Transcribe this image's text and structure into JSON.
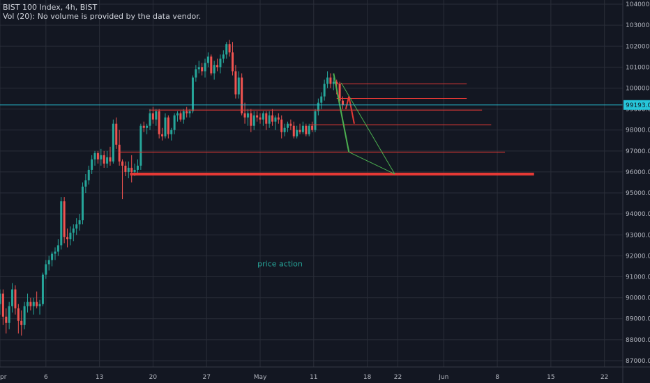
{
  "header": {
    "symbol_line": "BIST 100 Index, 4h, BIST",
    "volume_line": "Vol (20): No volume is provided by the data vendor."
  },
  "colors": {
    "background": "#131722",
    "grid": "#2a2e39",
    "up": "#26a69a",
    "down": "#ef5350",
    "level_line": "#e53935",
    "cyan_line": "#26c6da"
  },
  "chart_data": {
    "type": "candlestick",
    "title": "BIST 100 Index, 4h, BIST",
    "ylim": [
      86700,
      104200
    ],
    "y_ticks": [
      104000,
      103000,
      102000,
      101000,
      100000,
      99000,
      98000,
      97000,
      96000,
      95000,
      94000,
      93000,
      92000,
      91000,
      90000,
      89000,
      88000,
      87000
    ],
    "y_tick_labels": [
      "104000.00",
      "103000.00",
      "102000.00",
      "101000.00",
      "100000.00",
      "99000.00",
      "98000.00",
      "97000.00",
      "96000.00",
      "95000.00",
      "94000.00",
      "93000.00",
      "92000.00",
      "91000.00",
      "90000.00",
      "89000.00",
      "88000.00",
      "87000.00"
    ],
    "x_ticks": [
      {
        "label": "pr",
        "day": 0
      },
      {
        "label": "6",
        "day": 6
      },
      {
        "label": "13",
        "day": 13
      },
      {
        "label": "20",
        "day": 20
      },
      {
        "label": "27",
        "day": 27
      },
      {
        "label": "May",
        "day": 34
      },
      {
        "label": "11",
        "day": 41
      },
      {
        "label": "18",
        "day": 48
      },
      {
        "label": "22",
        "day": 52
      },
      {
        "label": "Jun",
        "day": 58
      },
      {
        "label": "8",
        "day": 65
      },
      {
        "label": "15",
        "day": 72
      },
      {
        "label": "22",
        "day": 79
      }
    ],
    "x_range_days": [
      0,
      81.4
    ],
    "current_price": 99193.03,
    "current_price_label": "99193.03",
    "candles": [
      {
        "d": 0.0,
        "o": 89700,
        "h": 90400,
        "l": 89200,
        "c": 90200
      },
      {
        "d": 0.4,
        "o": 90200,
        "h": 90400,
        "l": 88700,
        "c": 89100
      },
      {
        "d": 0.8,
        "o": 89100,
        "h": 89500,
        "l": 88300,
        "c": 88800
      },
      {
        "d": 1.2,
        "o": 88800,
        "h": 89800,
        "l": 88500,
        "c": 89600
      },
      {
        "d": 1.6,
        "o": 89600,
        "h": 90700,
        "l": 89300,
        "c": 90400
      },
      {
        "d": 2.0,
        "o": 90400,
        "h": 90600,
        "l": 89200,
        "c": 89500
      },
      {
        "d": 2.4,
        "o": 89500,
        "h": 89700,
        "l": 88300,
        "c": 88900
      },
      {
        "d": 2.8,
        "o": 88900,
        "h": 89400,
        "l": 88200,
        "c": 88700
      },
      {
        "d": 3.2,
        "o": 88700,
        "h": 89800,
        "l": 88500,
        "c": 89600
      },
      {
        "d": 3.6,
        "o": 89600,
        "h": 90200,
        "l": 89300,
        "c": 89800
      },
      {
        "d": 4.0,
        "o": 89800,
        "h": 90000,
        "l": 89400,
        "c": 89600
      },
      {
        "d": 4.4,
        "o": 89600,
        "h": 90000,
        "l": 89200,
        "c": 89800
      },
      {
        "d": 4.8,
        "o": 89800,
        "h": 90300,
        "l": 89500,
        "c": 89600
      },
      {
        "d": 5.2,
        "o": 89600,
        "h": 89900,
        "l": 89200,
        "c": 89700
      },
      {
        "d": 5.6,
        "o": 89700,
        "h": 91200,
        "l": 89600,
        "c": 91100
      },
      {
        "d": 6.0,
        "o": 91100,
        "h": 91800,
        "l": 90900,
        "c": 91600
      },
      {
        "d": 6.4,
        "o": 91600,
        "h": 92000,
        "l": 91300,
        "c": 91800
      },
      {
        "d": 6.8,
        "o": 91800,
        "h": 92200,
        "l": 91500,
        "c": 92100
      },
      {
        "d": 7.2,
        "o": 92100,
        "h": 92400,
        "l": 91800,
        "c": 92200
      },
      {
        "d": 7.6,
        "o": 92200,
        "h": 92800,
        "l": 92000,
        "c": 92500
      },
      {
        "d": 8.0,
        "o": 92500,
        "h": 94800,
        "l": 92300,
        "c": 94600
      },
      {
        "d": 8.4,
        "o": 94600,
        "h": 94800,
        "l": 92600,
        "c": 92900
      },
      {
        "d": 8.8,
        "o": 92900,
        "h": 93300,
        "l": 92400,
        "c": 92800
      },
      {
        "d": 9.2,
        "o": 92800,
        "h": 93400,
        "l": 92500,
        "c": 93100
      },
      {
        "d": 9.6,
        "o": 93100,
        "h": 93500,
        "l": 92700,
        "c": 93300
      },
      {
        "d": 10.0,
        "o": 93300,
        "h": 93800,
        "l": 93000,
        "c": 93500
      },
      {
        "d": 10.4,
        "o": 93500,
        "h": 94000,
        "l": 93200,
        "c": 93700
      },
      {
        "d": 10.8,
        "o": 93700,
        "h": 95500,
        "l": 93500,
        "c": 95300
      },
      {
        "d": 11.2,
        "o": 95300,
        "h": 95900,
        "l": 95000,
        "c": 95600
      },
      {
        "d": 11.6,
        "o": 95600,
        "h": 96300,
        "l": 95400,
        "c": 96100
      },
      {
        "d": 12.0,
        "o": 96100,
        "h": 96800,
        "l": 95900,
        "c": 96600
      },
      {
        "d": 12.4,
        "o": 96600,
        "h": 97000,
        "l": 96300,
        "c": 96900
      },
      {
        "d": 12.8,
        "o": 96900,
        "h": 97000,
        "l": 96400,
        "c": 96600
      },
      {
        "d": 13.2,
        "o": 96600,
        "h": 97100,
        "l": 96300,
        "c": 96800
      },
      {
        "d": 13.6,
        "o": 96800,
        "h": 97000,
        "l": 96200,
        "c": 96400
      },
      {
        "d": 14.0,
        "o": 96400,
        "h": 97000,
        "l": 96200,
        "c": 96700
      },
      {
        "d": 14.4,
        "o": 96700,
        "h": 97200,
        "l": 96300,
        "c": 96500
      },
      {
        "d": 14.8,
        "o": 96500,
        "h": 98500,
        "l": 96400,
        "c": 98300
      },
      {
        "d": 15.2,
        "o": 98300,
        "h": 98600,
        "l": 97100,
        "c": 97300
      },
      {
        "d": 15.6,
        "o": 97300,
        "h": 98000,
        "l": 96300,
        "c": 96500
      },
      {
        "d": 16.0,
        "o": 96500,
        "h": 96600,
        "l": 94700,
        "c": 96300
      },
      {
        "d": 16.4,
        "o": 96300,
        "h": 96500,
        "l": 95800,
        "c": 96000
      },
      {
        "d": 16.8,
        "o": 96000,
        "h": 96500,
        "l": 95700,
        "c": 96200
      },
      {
        "d": 17.2,
        "o": 96200,
        "h": 96800,
        "l": 95500,
        "c": 96000
      },
      {
        "d": 17.6,
        "o": 96000,
        "h": 96400,
        "l": 95800,
        "c": 96100
      },
      {
        "d": 18.0,
        "o": 96100,
        "h": 96600,
        "l": 95900,
        "c": 96300
      },
      {
        "d": 18.4,
        "o": 96300,
        "h": 98300,
        "l": 96100,
        "c": 98200
      },
      {
        "d": 18.8,
        "o": 98200,
        "h": 98400,
        "l": 97900,
        "c": 98100
      },
      {
        "d": 19.2,
        "o": 98100,
        "h": 98300,
        "l": 97800,
        "c": 98200
      },
      {
        "d": 19.6,
        "o": 98200,
        "h": 99000,
        "l": 98000,
        "c": 98800
      },
      {
        "d": 20.0,
        "o": 98800,
        "h": 99100,
        "l": 98300,
        "c": 98500
      },
      {
        "d": 20.4,
        "o": 98500,
        "h": 99000,
        "l": 98200,
        "c": 98900
      },
      {
        "d": 20.8,
        "o": 98900,
        "h": 99000,
        "l": 97600,
        "c": 97800
      },
      {
        "d": 21.2,
        "o": 97800,
        "h": 98100,
        "l": 97500,
        "c": 97700
      },
      {
        "d": 21.6,
        "o": 97700,
        "h": 98800,
        "l": 97600,
        "c": 98600
      },
      {
        "d": 22.0,
        "o": 98600,
        "h": 98700,
        "l": 97600,
        "c": 97800
      },
      {
        "d": 22.4,
        "o": 97800,
        "h": 98100,
        "l": 97500,
        "c": 98000
      },
      {
        "d": 22.8,
        "o": 98000,
        "h": 98800,
        "l": 97800,
        "c": 98700
      },
      {
        "d": 23.2,
        "o": 98700,
        "h": 98900,
        "l": 98400,
        "c": 98800
      },
      {
        "d": 23.6,
        "o": 98800,
        "h": 98900,
        "l": 98400,
        "c": 98500
      },
      {
        "d": 24.0,
        "o": 98500,
        "h": 99000,
        "l": 98300,
        "c": 98900
      },
      {
        "d": 24.4,
        "o": 98900,
        "h": 99100,
        "l": 98600,
        "c": 98800
      },
      {
        "d": 24.8,
        "o": 98800,
        "h": 99000,
        "l": 98600,
        "c": 98900
      },
      {
        "d": 25.2,
        "o": 98900,
        "h": 100600,
        "l": 98800,
        "c": 100500
      },
      {
        "d": 25.6,
        "o": 100500,
        "h": 101100,
        "l": 100300,
        "c": 100900
      },
      {
        "d": 26.0,
        "o": 100900,
        "h": 101300,
        "l": 100700,
        "c": 101000
      },
      {
        "d": 26.4,
        "o": 101000,
        "h": 101200,
        "l": 100600,
        "c": 100800
      },
      {
        "d": 26.8,
        "o": 100800,
        "h": 101400,
        "l": 100500,
        "c": 101200
      },
      {
        "d": 27.2,
        "o": 101200,
        "h": 101700,
        "l": 101000,
        "c": 101500
      },
      {
        "d": 27.6,
        "o": 101500,
        "h": 101600,
        "l": 100600,
        "c": 100700
      },
      {
        "d": 28.0,
        "o": 100700,
        "h": 101300,
        "l": 100400,
        "c": 101100
      },
      {
        "d": 28.4,
        "o": 101100,
        "h": 101400,
        "l": 100800,
        "c": 101000
      },
      {
        "d": 28.8,
        "o": 101000,
        "h": 101600,
        "l": 100700,
        "c": 101400
      },
      {
        "d": 29.2,
        "o": 101400,
        "h": 101800,
        "l": 101200,
        "c": 101600
      },
      {
        "d": 29.6,
        "o": 101600,
        "h": 102200,
        "l": 101400,
        "c": 102100
      },
      {
        "d": 30.0,
        "o": 102100,
        "h": 102300,
        "l": 101500,
        "c": 101700
      },
      {
        "d": 30.4,
        "o": 101700,
        "h": 102200,
        "l": 100600,
        "c": 100800
      },
      {
        "d": 30.8,
        "o": 100800,
        "h": 101100,
        "l": 99500,
        "c": 99700
      },
      {
        "d": 31.2,
        "o": 99700,
        "h": 100800,
        "l": 99500,
        "c": 100500
      },
      {
        "d": 31.6,
        "o": 100500,
        "h": 100700,
        "l": 98700,
        "c": 98800
      },
      {
        "d": 32.0,
        "o": 98800,
        "h": 99300,
        "l": 98300,
        "c": 98600
      },
      {
        "d": 32.4,
        "o": 98600,
        "h": 99000,
        "l": 98200,
        "c": 98800
      },
      {
        "d": 32.8,
        "o": 98800,
        "h": 99000,
        "l": 97900,
        "c": 98200
      },
      {
        "d": 33.2,
        "o": 98200,
        "h": 98900,
        "l": 98000,
        "c": 98700
      },
      {
        "d": 33.6,
        "o": 98700,
        "h": 98900,
        "l": 98400,
        "c": 98600
      },
      {
        "d": 34.0,
        "o": 98600,
        "h": 98800,
        "l": 98300,
        "c": 98500
      },
      {
        "d": 34.4,
        "o": 98500,
        "h": 98900,
        "l": 98200,
        "c": 98800
      },
      {
        "d": 34.8,
        "o": 98800,
        "h": 98900,
        "l": 98000,
        "c": 98300
      },
      {
        "d": 35.2,
        "o": 98300,
        "h": 98900,
        "l": 98100,
        "c": 98700
      },
      {
        "d": 35.6,
        "o": 98700,
        "h": 99000,
        "l": 98200,
        "c": 98400
      },
      {
        "d": 36.0,
        "o": 98400,
        "h": 98700,
        "l": 98000,
        "c": 98600
      },
      {
        "d": 36.4,
        "o": 98600,
        "h": 98800,
        "l": 98300,
        "c": 98500
      },
      {
        "d": 36.8,
        "o": 98500,
        "h": 98700,
        "l": 97600,
        "c": 97900
      },
      {
        "d": 37.2,
        "o": 97900,
        "h": 98300,
        "l": 97700,
        "c": 98100
      },
      {
        "d": 37.6,
        "o": 98100,
        "h": 98400,
        "l": 97900,
        "c": 98300
      },
      {
        "d": 38.0,
        "o": 98300,
        "h": 98500,
        "l": 98000,
        "c": 98200
      },
      {
        "d": 38.4,
        "o": 98200,
        "h": 98400,
        "l": 97600,
        "c": 97700
      },
      {
        "d": 38.8,
        "o": 97700,
        "h": 98200,
        "l": 97600,
        "c": 98000
      },
      {
        "d": 39.2,
        "o": 98000,
        "h": 98300,
        "l": 97800,
        "c": 97900
      },
      {
        "d": 39.6,
        "o": 97900,
        "h": 98400,
        "l": 97800,
        "c": 98200
      },
      {
        "d": 40.0,
        "o": 98200,
        "h": 98300,
        "l": 97700,
        "c": 97800
      },
      {
        "d": 40.4,
        "o": 97800,
        "h": 98300,
        "l": 97700,
        "c": 98200
      },
      {
        "d": 40.8,
        "o": 98200,
        "h": 98400,
        "l": 97900,
        "c": 98000
      },
      {
        "d": 41.2,
        "o": 98000,
        "h": 99000,
        "l": 97900,
        "c": 98900
      },
      {
        "d": 41.6,
        "o": 98900,
        "h": 99500,
        "l": 98700,
        "c": 99300
      },
      {
        "d": 42.0,
        "o": 99300,
        "h": 99800,
        "l": 99000,
        "c": 99600
      },
      {
        "d": 42.4,
        "o": 99600,
        "h": 100400,
        "l": 99400,
        "c": 100200
      },
      {
        "d": 42.8,
        "o": 100200,
        "h": 100800,
        "l": 100000,
        "c": 100500
      },
      {
        "d": 43.2,
        "o": 100500,
        "h": 100700,
        "l": 100000,
        "c": 100200
      },
      {
        "d": 43.6,
        "o": 100200,
        "h": 100500,
        "l": 99900,
        "c": 100300
      },
      {
        "d": 44.0,
        "o": 100300,
        "h": 100400,
        "l": 99700,
        "c": 100200
      },
      {
        "d": 44.4,
        "o": 100200,
        "h": 100300,
        "l": 99300,
        "c": 99400
      },
      {
        "d": 44.8,
        "o": 99400,
        "h": 99600,
        "l": 99000,
        "c": 99200
      }
    ],
    "level_lines": [
      {
        "price": 100200,
        "from_day": 44.0,
        "to_day": 61.0,
        "width": 1
      },
      {
        "price": 99500,
        "from_day": 44.0,
        "to_day": 61.0,
        "width": 1
      },
      {
        "price": 98950,
        "from_day": 19.5,
        "to_day": 63.0,
        "width": 1
      },
      {
        "price": 98250,
        "from_day": 40.5,
        "to_day": 64.2,
        "width": 1
      },
      {
        "price": 96950,
        "from_day": 15.5,
        "to_day": 66.0,
        "width": 1
      },
      {
        "price": 95900,
        "from_day": 17.0,
        "to_day": 69.8,
        "width": 4
      }
    ],
    "annotation": "price action"
  }
}
